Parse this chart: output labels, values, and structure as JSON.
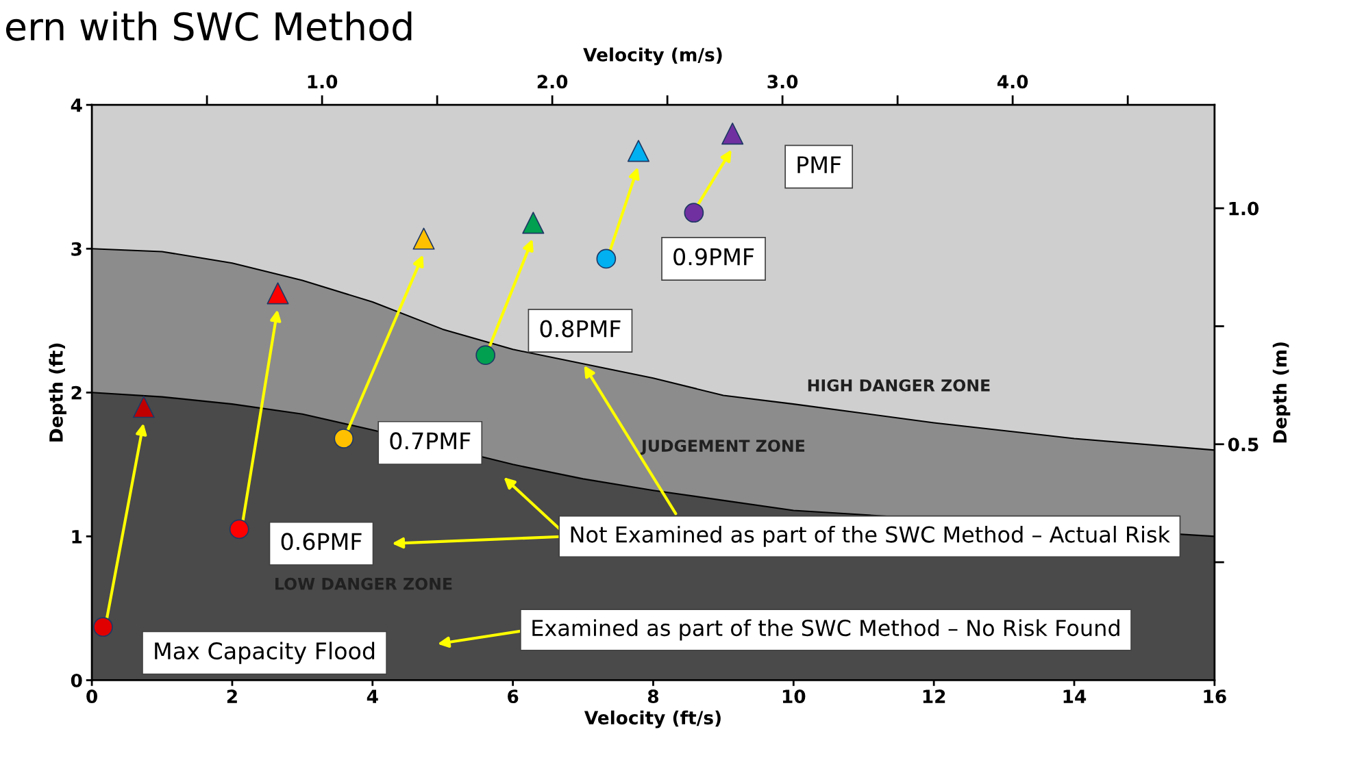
{
  "chart_data": {
    "type": "scatter",
    "title": "ern with SWC Method",
    "xlabel": "Velocity (ft/s)",
    "ylabel": "Depth (ft)",
    "x2label": "Velocity (m/s)",
    "y2label": "Depth (m)",
    "xlim": [
      0,
      16
    ],
    "xticks": [
      0,
      2,
      4,
      6,
      8,
      10,
      12,
      14,
      16
    ],
    "ylim": [
      0,
      4
    ],
    "yticks": [
      0,
      1,
      2,
      3,
      4
    ],
    "x2lim": [
      0,
      4.877
    ],
    "x2ticks": [
      {
        "value": 0.5,
        "label": null
      },
      {
        "value": 1.0,
        "label": "1.0"
      },
      {
        "value": 1.5,
        "label": null
      },
      {
        "value": 2.0,
        "label": "2.0"
      },
      {
        "value": 2.5,
        "label": null
      },
      {
        "value": 3.0,
        "label": "3.0"
      },
      {
        "value": 3.5,
        "label": null
      },
      {
        "value": 4.0,
        "label": "4.0"
      },
      {
        "value": 4.5,
        "label": null
      }
    ],
    "y2lim": [
      0,
      1.219
    ],
    "y2ticks": [
      {
        "value": 0.25,
        "label": null
      },
      {
        "value": 0.5,
        "label": "0.5"
      },
      {
        "value": 0.75,
        "label": null
      },
      {
        "value": 1.0,
        "label": "1.0"
      }
    ],
    "grid": false,
    "series": [
      {
        "type": "area",
        "color": "#8c8c8c",
        "x": [
          0,
          1,
          2,
          3,
          4,
          5,
          6,
          7,
          8,
          9,
          10,
          12,
          14,
          16
        ],
        "values": [
          3.0,
          2.98,
          2.9,
          2.78,
          2.63,
          2.44,
          2.3,
          2.2,
          2.1,
          1.98,
          1.92,
          1.79,
          1.68,
          1.6
        ]
      },
      {
        "type": "area",
        "color": "#4a4a4a",
        "x": [
          0,
          1,
          2,
          3,
          4,
          6,
          7,
          8,
          9,
          10,
          16
        ],
        "values": [
          2.0,
          1.97,
          1.92,
          1.85,
          1.74,
          1.5,
          1.4,
          1.32,
          1.25,
          1.18,
          1.0
        ]
      },
      {
        "marker": "circle",
        "x": [
          0.16,
          2.1,
          3.59,
          5.61,
          7.33,
          8.58
        ],
        "values": [
          0.37,
          1.05,
          1.68,
          2.26,
          2.93,
          3.25
        ],
        "colors": [
          "#e00000",
          "#ff0000",
          "#ffc000",
          "#00a050",
          "#00b0f0",
          "#7030a0"
        ]
      },
      {
        "marker": "triangle",
        "x": [
          0.74,
          2.65,
          4.73,
          6.29,
          7.79,
          9.13
        ],
        "values": [
          1.9,
          2.69,
          3.07,
          3.18,
          3.68,
          3.8
        ],
        "colors": [
          "#c00000",
          "#ff0000",
          "#ffc000",
          "#00a050",
          "#00b0f0",
          "#7030a0"
        ]
      }
    ],
    "annotations": [
      {
        "text": "Max Capacity Flood",
        "x": 0.16,
        "y": 0.37
      },
      {
        "text": "0.6PMF",
        "x": 2.1,
        "y": 1.05
      },
      {
        "text": "0.7PMF",
        "x": 3.59,
        "y": 1.68
      },
      {
        "text": "0.8PMF",
        "x": 5.61,
        "y": 2.26
      },
      {
        "text": "0.9PMF",
        "x": 7.33,
        "y": 2.93
      },
      "PMF",
      "HIGH DANGER ZONE",
      "JUDGEMENT ZONE",
      "LOW DANGER ZONE",
      {
        "text": "Not Examined as part of the SWC Method – Actual Risk",
        "x": 7,
        "y": 2.2
      },
      "Examined as part of the SWC Method – No Risk Found"
    ]
  }
}
